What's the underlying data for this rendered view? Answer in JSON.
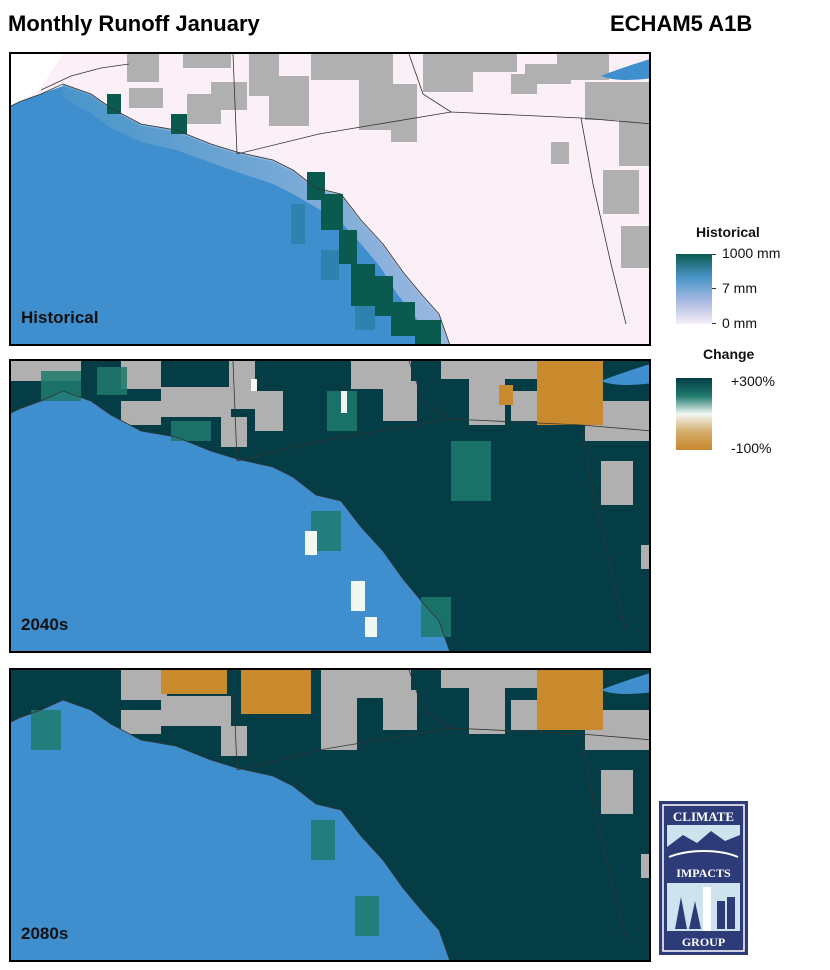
{
  "header": {
    "title": "Monthly Runoff January",
    "model": "ECHAM5 A1B"
  },
  "panels": [
    {
      "label": "Historical",
      "variable": "runoff",
      "units": "mm"
    },
    {
      "label": "2040s",
      "variable": "change",
      "units": "%"
    },
    {
      "label": "2080s",
      "variable": "change",
      "units": "%"
    }
  ],
  "legend": {
    "historical": {
      "title": "Historical",
      "labels": [
        "1000 mm",
        "7 mm",
        "0 mm"
      ],
      "colors": [
        "#0b5a50",
        "#4a96c8",
        "#a7b8e0",
        "#f7eef8"
      ]
    },
    "change": {
      "title": "Change",
      "labels": [
        "+300%",
        "-100%"
      ],
      "colors": [
        "#063d46",
        "#1f7a6d",
        "#f2f7f2",
        "#d4ad6c",
        "#c8872b"
      ]
    }
  },
  "colors": {
    "ocean": "#3f8ece",
    "no_data": "#b0b0b0",
    "land_low": "#fbf0f8",
    "high_change": "#053d47",
    "decrease": "#c98a2d"
  },
  "logo": {
    "top_text": "CLIMATE",
    "middle_text": "IMPACTS",
    "bottom_text": "GROUP"
  }
}
